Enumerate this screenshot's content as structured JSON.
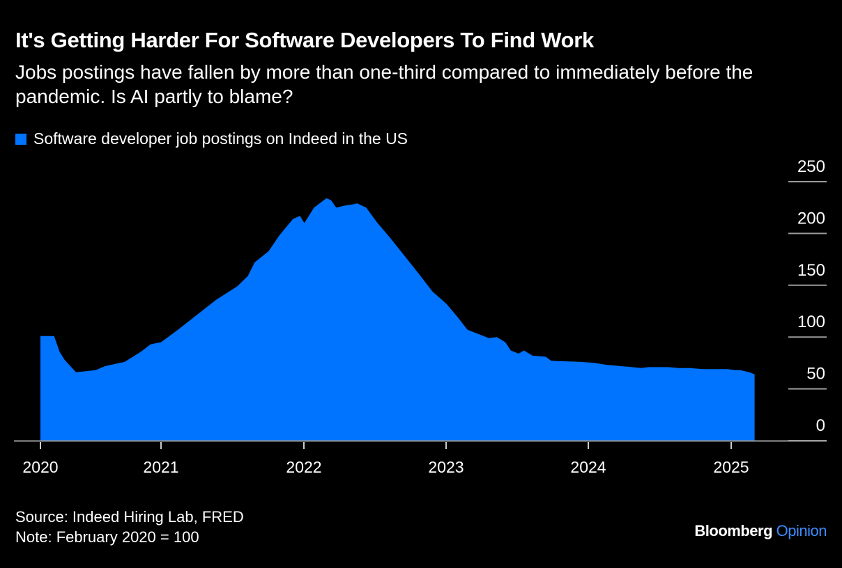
{
  "colors": {
    "background": "#000000",
    "series": "#0073FF",
    "axis": "#9a9a9a",
    "text": "#ffffff",
    "brand_accent": "#3d8bff"
  },
  "chart_data": {
    "type": "area",
    "title": "It's Getting Harder For Software Developers To Find Work",
    "subtitle": "Jobs postings have fallen by more than one-third compared to immediately before the pandemic. Is AI partly to blame?",
    "xlabel": "",
    "ylabel": "",
    "ylim": [
      0,
      250
    ],
    "y_ticks": [
      0,
      50,
      100,
      150,
      200,
      250
    ],
    "y_axis_side": "right",
    "x_ticks": [
      {
        "label": "2020",
        "date": "2020-02-01"
      },
      {
        "label": "2021",
        "date": "2021-01-01"
      },
      {
        "label": "2022",
        "date": "2022-01-01"
      },
      {
        "label": "2023",
        "date": "2023-01-01"
      },
      {
        "label": "2024",
        "date": "2024-01-01"
      },
      {
        "label": "2025",
        "date": "2025-01-01"
      }
    ],
    "grid": false,
    "legend_position": "top-left",
    "series": [
      {
        "name": "Software developer job postings on Indeed in the US",
        "points": [
          [
            "2020-02-01",
            101
          ],
          [
            "2020-03-10",
            101
          ],
          [
            "2020-03-25",
            86
          ],
          [
            "2020-04-08",
            78
          ],
          [
            "2020-05-10",
            66
          ],
          [
            "2020-07-03",
            68
          ],
          [
            "2020-07-30",
            72
          ],
          [
            "2020-09-22",
            76
          ],
          [
            "2020-11-07",
            86
          ],
          [
            "2020-12-03",
            93
          ],
          [
            "2021-01-01",
            95
          ],
          [
            "2021-02-13",
            107
          ],
          [
            "2021-03-29",
            120
          ],
          [
            "2021-05-22",
            136
          ],
          [
            "2021-07-15",
            149
          ],
          [
            "2021-08-11",
            159
          ],
          [
            "2021-08-28",
            172
          ],
          [
            "2021-10-03",
            183
          ],
          [
            "2021-10-30",
            198
          ],
          [
            "2021-12-04",
            214
          ],
          [
            "2021-12-22",
            217
          ],
          [
            "2022-01-02",
            210
          ],
          [
            "2022-01-27",
            225
          ],
          [
            "2022-02-28",
            234
          ],
          [
            "2022-03-12",
            232
          ],
          [
            "2022-03-25",
            225
          ],
          [
            "2022-04-17",
            227
          ],
          [
            "2022-05-05",
            228
          ],
          [
            "2022-05-18",
            229
          ],
          [
            "2022-06-10",
            225
          ],
          [
            "2022-07-07",
            211
          ],
          [
            "2022-08-12",
            195
          ],
          [
            "2022-09-17",
            178
          ],
          [
            "2022-10-23",
            161
          ],
          [
            "2022-11-27",
            144
          ],
          [
            "2023-01-02",
            132
          ],
          [
            "2023-01-29",
            120
          ],
          [
            "2023-02-25",
            107
          ],
          [
            "2023-04-21",
            99
          ],
          [
            "2023-05-11",
            100
          ],
          [
            "2023-06-02",
            95
          ],
          [
            "2023-06-16",
            87
          ],
          [
            "2023-07-06",
            84
          ],
          [
            "2023-07-20",
            87
          ],
          [
            "2023-08-11",
            82
          ],
          [
            "2023-09-14",
            81
          ],
          [
            "2023-09-28",
            77
          ],
          [
            "2023-12-14",
            76
          ],
          [
            "2024-01-17",
            75
          ],
          [
            "2024-02-20",
            73
          ],
          [
            "2024-04-23",
            71
          ],
          [
            "2024-05-15",
            70
          ],
          [
            "2024-06-03",
            71
          ],
          [
            "2024-07-24",
            71
          ],
          [
            "2024-08-20",
            70
          ],
          [
            "2024-09-17",
            70
          ],
          [
            "2024-10-21",
            69
          ],
          [
            "2024-12-23",
            69
          ],
          [
            "2025-01-11",
            68
          ],
          [
            "2025-01-25",
            68
          ],
          [
            "2025-02-16",
            66
          ],
          [
            "2025-03-02",
            64
          ]
        ]
      }
    ],
    "source": "Source: Indeed Hiring Lab, FRED",
    "note": "Note: February 2020 = 100"
  },
  "branding": {
    "name": "Bloomberg",
    "section": "Opinion"
  }
}
